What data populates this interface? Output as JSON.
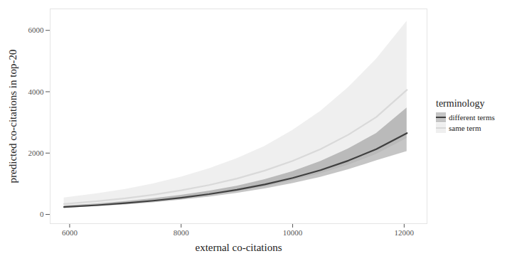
{
  "chart_data": {
    "type": "line",
    "x_label": "external co-citations",
    "y_label": "predicted co-citations in top-20",
    "legend_title": "terminology",
    "legend": "right",
    "grid": false,
    "x": [
      5900,
      6500,
      7000,
      7500,
      8000,
      8500,
      9000,
      9500,
      10000,
      10500,
      11000,
      11500,
      12050
    ],
    "xlim": [
      5650,
      12410
    ],
    "xticks": [
      6000,
      8000,
      10000,
      12000
    ],
    "ylim": [
      -300,
      6700
    ],
    "yticks": [
      0,
      2000,
      4000,
      6000
    ],
    "series": [
      {
        "name": "different terms",
        "color": "#404040",
        "values": [
          240,
          303,
          368,
          447,
          545,
          662,
          805,
          977,
          1190,
          1445,
          1755,
          2130,
          2650
        ],
        "lower": [
          205,
          260,
          315,
          385,
          470,
          570,
          690,
          835,
          1010,
          1215,
          1460,
          1750,
          2050
        ],
        "upper": [
          280,
          350,
          425,
          515,
          625,
          760,
          925,
          1135,
          1400,
          1730,
          2140,
          2640,
          3470
        ]
      },
      {
        "name": "same term",
        "color": "#d9d9d9",
        "values": [
          340,
          432,
          527,
          643,
          785,
          958,
          1170,
          1430,
          1745,
          2130,
          2600,
          3175,
          4060
        ],
        "lower": [
          225,
          285,
          350,
          420,
          510,
          620,
          750,
          905,
          1100,
          1330,
          1610,
          1960,
          2480
        ],
        "upper": [
          540,
          680,
          820,
          1000,
          1220,
          1490,
          1820,
          2220,
          2740,
          3360,
          4140,
          5060,
          6300
        ]
      }
    ]
  }
}
